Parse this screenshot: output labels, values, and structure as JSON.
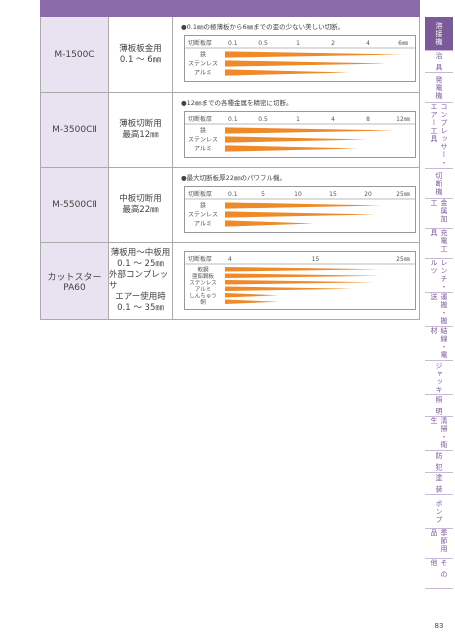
{
  "rows": [
    {
      "model": "M-1500C",
      "use": [
        "薄板板金用",
        "0.1 ～ 6㎜"
      ],
      "note": "●0.1㎜の極薄板から6㎜までの歪の少ない美しい切断。",
      "scale_label": "切断板厚",
      "ticks": [
        "0.1",
        "0.5",
        "1",
        "2",
        "4",
        "6㎜"
      ],
      "materials": [
        "鉄",
        "ステンレス",
        "アルミ"
      ]
    },
    {
      "model": "M-3500CⅡ",
      "use": [
        "薄板切断用",
        "最高12㎜"
      ],
      "note": "●12㎜までの各種金属を精密に切断。",
      "scale_label": "切断板厚",
      "ticks": [
        "0.1",
        "0.5",
        "1",
        "4",
        "8",
        "12㎜"
      ],
      "materials": [
        "鉄",
        "ステンレス",
        "アルミ"
      ]
    },
    {
      "model": "M-5500CⅡ",
      "use": [
        "中板切断用",
        "最高22㎜"
      ],
      "note": "●最大切断板厚22㎜のパワフル機。",
      "scale_label": "切断板厚",
      "ticks": [
        "0.1",
        "5",
        "10",
        "15",
        "20",
        "25㎜"
      ],
      "materials": [
        "鉄",
        "ステンレス",
        "アルミ"
      ]
    },
    {
      "model": "カットスター PA60",
      "use": [
        "薄板用～中板用",
        "0.1 ～ 25㎜",
        "外部コンプレッサ",
        "エアー使用時",
        "0.1 ～ 35㎜"
      ],
      "note": null,
      "scale_label": "切断板厚",
      "ticks": [
        "4",
        "15",
        "25㎜"
      ],
      "materials": [
        "軟鋼",
        "亜鉛鋼板",
        "ステンレス",
        "アルミ",
        "しんちゅう",
        "銅"
      ]
    }
  ],
  "sidebar": [
    "溶接機",
    "治 具",
    "発電機",
    "コンプレッサー・エアー工具",
    "切断機",
    "金属加工",
    "充電工具",
    "レンチ・ルツ",
    "運搬・搬送",
    "結線・電材",
    "ジャッキ",
    "照 明",
    "清掃・衛生",
    "防 犯",
    "塗 装",
    "ポンプ",
    "季節用品",
    "そ の 他"
  ],
  "page_number": "83"
}
